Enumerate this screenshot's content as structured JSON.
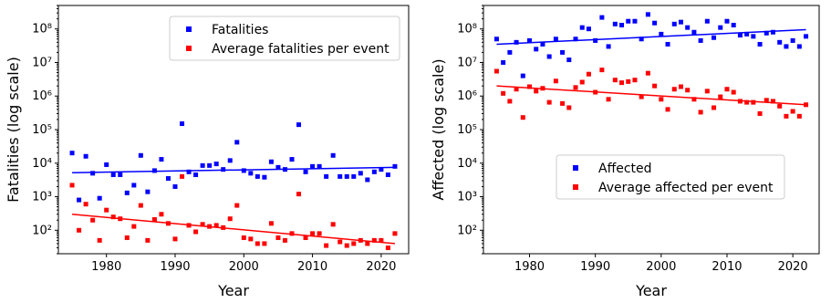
{
  "chart_data": [
    {
      "type": "scatter",
      "xlabel": "Year",
      "ylabel": "Fatalities (log scale)",
      "yscale": "log",
      "xlim": [
        1973,
        2024
      ],
      "ylim": [
        20,
        500000000
      ],
      "xticks": [
        1980,
        1990,
        2000,
        2010,
        2020
      ],
      "yticks": [
        {
          "value": 100,
          "label": "10²"
        },
        {
          "value": 1000,
          "label": "10³"
        },
        {
          "value": 10000,
          "label": "10⁴"
        },
        {
          "value": 100000,
          "label": "10⁵"
        },
        {
          "value": 1000000,
          "label": "10⁶"
        },
        {
          "value": 10000000,
          "label": "10⁷"
        },
        {
          "value": 100000000,
          "label": "10⁸"
        }
      ],
      "legend_position": "upper-right",
      "series": [
        {
          "name": "Fatalities",
          "color": "#0000ff",
          "x": [
            1975,
            1976,
            1977,
            1978,
            1979,
            1980,
            1981,
            1982,
            1983,
            1984,
            1985,
            1986,
            1987,
            1988,
            1989,
            1990,
            1991,
            1992,
            1993,
            1994,
            1995,
            1996,
            1997,
            1998,
            1999,
            2000,
            2001,
            2002,
            2003,
            2004,
            2005,
            2006,
            2007,
            2008,
            2009,
            2010,
            2011,
            2012,
            2013,
            2014,
            2015,
            2016,
            2017,
            2018,
            2019,
            2020,
            2021,
            2022
          ],
          "values": [
            20000,
            800,
            16000,
            5000,
            900,
            9000,
            4500,
            4500,
            1300,
            2200,
            17000,
            1400,
            6000,
            13000,
            3500,
            2000,
            150000,
            5500,
            4500,
            8500,
            8500,
            9500,
            6500,
            12000,
            42000,
            6000,
            5000,
            4000,
            3800,
            11000,
            7500,
            6500,
            13000,
            140000,
            5500,
            8000,
            8000,
            4000,
            17000,
            4000,
            4000,
            4000,
            5000,
            3200,
            5500,
            6500,
            4500,
            8000
          ],
          "trend": [
            5200,
            7500
          ]
        },
        {
          "name": "Average fatalities per event",
          "color": "#ff0000",
          "x": [
            1975,
            1976,
            1977,
            1978,
            1979,
            1980,
            1981,
            1982,
            1983,
            1984,
            1985,
            1986,
            1987,
            1988,
            1989,
            1990,
            1991,
            1992,
            1993,
            1994,
            1995,
            1996,
            1997,
            1998,
            1999,
            2000,
            2001,
            2002,
            2003,
            2004,
            2005,
            2006,
            2007,
            2008,
            2009,
            2010,
            2011,
            2012,
            2013,
            2014,
            2015,
            2016,
            2017,
            2018,
            2019,
            2020,
            2021,
            2022
          ],
          "values": [
            2200,
            100,
            600,
            200,
            50,
            400,
            250,
            220,
            60,
            130,
            550,
            50,
            210,
            300,
            160,
            55,
            4000,
            140,
            90,
            150,
            130,
            140,
            120,
            220,
            550,
            60,
            55,
            40,
            40,
            160,
            60,
            50,
            80,
            1200,
            60,
            80,
            80,
            35,
            150,
            45,
            35,
            40,
            50,
            40,
            50,
            50,
            30,
            80
          ],
          "trend": [
            300,
            40
          ]
        }
      ]
    },
    {
      "type": "scatter",
      "xlabel": "Year",
      "ylabel": "Affected (log scale)",
      "yscale": "log",
      "xlim": [
        1973,
        2024
      ],
      "ylim": [
        20,
        500000000
      ],
      "xticks": [
        1980,
        1990,
        2000,
        2010,
        2020
      ],
      "yticks": [
        {
          "value": 100,
          "label": "10²"
        },
        {
          "value": 1000,
          "label": "10³"
        },
        {
          "value": 10000,
          "label": "10⁴"
        },
        {
          "value": 100000,
          "label": "10⁵"
        },
        {
          "value": 1000000,
          "label": "10⁶"
        },
        {
          "value": 10000000,
          "label": "10⁷"
        },
        {
          "value": 100000000,
          "label": "10⁸"
        }
      ],
      "legend_position": "center-right",
      "series": [
        {
          "name": "Affected",
          "color": "#0000ff",
          "x": [
            1975,
            1976,
            1977,
            1978,
            1979,
            1980,
            1981,
            1982,
            1983,
            1984,
            1985,
            1986,
            1987,
            1988,
            1989,
            1990,
            1991,
            1992,
            1993,
            1994,
            1995,
            1996,
            1997,
            1998,
            1999,
            2000,
            2001,
            2002,
            2003,
            2004,
            2005,
            2006,
            2007,
            2008,
            2009,
            2010,
            2011,
            2012,
            2013,
            2014,
            2015,
            2016,
            2017,
            2018,
            2019,
            2020,
            2021,
            2022
          ],
          "values": [
            50000000,
            10000000,
            20000000,
            40000000,
            4000000,
            45000000,
            25000000,
            35000000,
            15000000,
            50000000,
            20000000,
            12000000,
            50000000,
            110000000,
            100000000,
            45000000,
            220000000,
            30000000,
            140000000,
            130000000,
            170000000,
            170000000,
            50000000,
            270000000,
            150000000,
            70000000,
            35000000,
            140000000,
            160000000,
            110000000,
            80000000,
            45000000,
            170000000,
            55000000,
            110000000,
            170000000,
            130000000,
            65000000,
            70000000,
            60000000,
            35000000,
            75000000,
            80000000,
            40000000,
            30000000,
            45000000,
            30000000,
            60000000
          ],
          "trend": [
            35000000,
            95000000
          ]
        },
        {
          "name": "Average affected per event",
          "color": "#ff0000",
          "x": [
            1975,
            1976,
            1977,
            1978,
            1979,
            1980,
            1981,
            1982,
            1983,
            1984,
            1985,
            1986,
            1987,
            1988,
            1989,
            1990,
            1991,
            1992,
            1993,
            1994,
            1995,
            1996,
            1997,
            1998,
            1999,
            2000,
            2001,
            2002,
            2003,
            2004,
            2005,
            2006,
            2007,
            2008,
            2009,
            2010,
            2011,
            2012,
            2013,
            2014,
            2015,
            2016,
            2017,
            2018,
            2019,
            2020,
            2021,
            2022
          ],
          "values": [
            5500000,
            1200000,
            700000,
            1600000,
            230000,
            1900000,
            1400000,
            1700000,
            650000,
            2800000,
            600000,
            450000,
            1800000,
            2600000,
            4500000,
            1300000,
            6000000,
            800000,
            3000000,
            2500000,
            2700000,
            3000000,
            950000,
            4800000,
            2000000,
            800000,
            400000,
            1600000,
            1900000,
            1500000,
            800000,
            330000,
            1400000,
            450000,
            950000,
            1600000,
            1300000,
            700000,
            650000,
            650000,
            300000,
            750000,
            700000,
            500000,
            250000,
            350000,
            250000,
            550000
          ],
          "trend": [
            2000000,
            550000
          ]
        }
      ]
    }
  ]
}
